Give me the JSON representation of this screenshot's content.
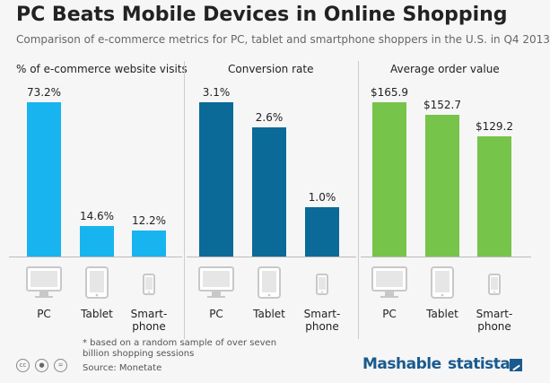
{
  "header": {
    "title": "PC Beats Mobile Devices in Online Shopping",
    "subtitle": "Comparison of e-commerce metrics for PC, tablet and smartphone shoppers in the U.S. in Q4 2013"
  },
  "chart_data": [
    {
      "type": "bar",
      "title": "% of e-commerce website visits",
      "categories": [
        "PC",
        "Tablet",
        "Smart-phone"
      ],
      "values": [
        73.2,
        14.6,
        12.2
      ],
      "value_labels": [
        "73.2%",
        "14.6%",
        "12.2%"
      ],
      "color": "#17b4f0",
      "ylim": [
        0,
        73.2
      ]
    },
    {
      "type": "bar",
      "title": "Conversion rate",
      "categories": [
        "PC",
        "Tablet",
        "Smart-phone"
      ],
      "values": [
        3.1,
        2.6,
        1.0
      ],
      "value_labels": [
        "3.1%",
        "2.6%",
        "1.0%"
      ],
      "color": "#0b6a98",
      "ylim": [
        0,
        3.1
      ]
    },
    {
      "type": "bar",
      "title": "Average order value",
      "categories": [
        "PC",
        "Tablet",
        "Smart-phone"
      ],
      "values": [
        165.9,
        152.7,
        129.2
      ],
      "value_labels": [
        "$165.9",
        "$152.7",
        "$129.2"
      ],
      "color": "#76c44a",
      "ylim": [
        0,
        165.9
      ]
    }
  ],
  "devices": [
    {
      "label": "PC",
      "icon": "monitor-icon"
    },
    {
      "label": "Tablet",
      "icon": "tablet-icon"
    },
    {
      "label": "Smart-\nphone",
      "icon": "smartphone-icon"
    }
  ],
  "footer": {
    "footnote": "* based on a random sample of over seven billion shopping sessions",
    "source": "Source: Monetate",
    "license_icons": [
      "cc-icon",
      "by-icon",
      "nd-icon"
    ],
    "brands": [
      "Mashable",
      "statista"
    ]
  }
}
